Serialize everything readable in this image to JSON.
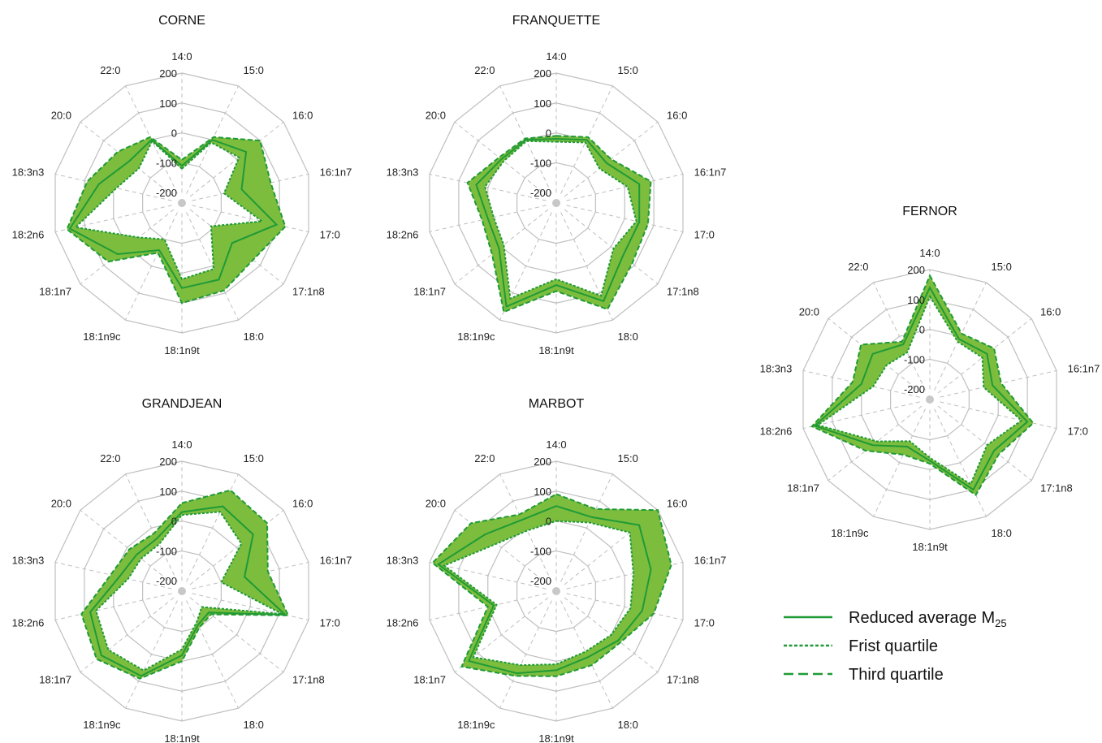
{
  "chart_data": [
    {
      "type": "radar",
      "title": "CORNE",
      "categories": [
        "14:0",
        "15:0",
        "16:0",
        "16:1n7",
        "17:0",
        "17:1n8",
        "18:0",
        "18:1n9t",
        "18:1n9c",
        "18:1n7",
        "18:2n6",
        "18:3n3",
        "20:0",
        "22:0"
      ],
      "rlim": [
        -200,
        200
      ],
      "ticks": [
        200,
        100,
        0,
        -100,
        -200
      ],
      "series": [
        {
          "name": "Reduced average M25",
          "values": [
            -110,
            0,
            40,
            -30,
            90,
            -20,
            50,
            50,
            -60,
            40,
            150,
            50,
            -10,
            0
          ]
        },
        {
          "name": "Frist quartile",
          "values": [
            -120,
            -10,
            10,
            -90,
            40,
            -110,
            10,
            20,
            -100,
            -50,
            130,
            -10,
            -50,
            -5
          ]
        },
        {
          "name": "Third quartile",
          "values": [
            -90,
            10,
            100,
            70,
            120,
            70,
            90,
            100,
            -50,
            80,
            160,
            90,
            40,
            10
          ]
        }
      ]
    },
    {
      "type": "radar",
      "title": "FRANQUETTE",
      "categories": [
        "14:0",
        "15:0",
        "16:0",
        "16:1n7",
        "17:0",
        "17:1n8",
        "18:0",
        "18:1n9t",
        "18:1n9c",
        "18:1n7",
        "18:2n6",
        "18:3n3",
        "20:0",
        "22:0"
      ],
      "rlim": [
        -200,
        200
      ],
      "ticks": [
        200,
        100,
        0,
        -100,
        -200
      ],
      "series": [
        {
          "name": "Reduced average M25",
          "values": [
            -20,
            0,
            -20,
            50,
            50,
            50,
            130,
            40,
            150,
            10,
            0,
            40,
            0,
            0
          ]
        },
        {
          "name": "Frist quartile",
          "values": [
            -30,
            -10,
            -50,
            10,
            40,
            10,
            110,
            20,
            120,
            -10,
            -20,
            10,
            -10,
            -5
          ]
        },
        {
          "name": "Third quartile",
          "values": [
            -10,
            10,
            0,
            90,
            80,
            90,
            160,
            60,
            170,
            40,
            20,
            70,
            10,
            5
          ]
        }
      ]
    },
    {
      "type": "radar",
      "title": "FERNOR",
      "categories": [
        "14:0",
        "15:0",
        "16:0",
        "16:1n7",
        "17:0",
        "17:1n8",
        "18:0",
        "18:1n9t",
        "18:1n9c",
        "18:1n7",
        "18:2n6",
        "18:3n3",
        "20:0",
        "22:0"
      ],
      "rlim": [
        -200,
        200
      ],
      "ticks": [
        200,
        100,
        0,
        -100,
        -200
      ],
      "series": [
        {
          "name": "Reduced average M25",
          "values": [
            140,
            -10,
            10,
            -20,
            100,
            40,
            100,
            -30,
            -60,
            10,
            160,
            0,
            10,
            -30
          ]
        },
        {
          "name": "Frist quartile",
          "values": [
            110,
            -20,
            -10,
            -50,
            80,
            10,
            80,
            -40,
            -80,
            -10,
            150,
            -40,
            -50,
            -60
          ]
        },
        {
          "name": "Third quartile",
          "values": [
            180,
            10,
            40,
            10,
            120,
            60,
            120,
            -20,
            -30,
            40,
            170,
            30,
            60,
            -20
          ]
        }
      ]
    },
    {
      "type": "radar",
      "title": "GRANDJEAN",
      "categories": [
        "14:0",
        "15:0",
        "16:0",
        "16:1n7",
        "17:0",
        "17:1n8",
        "18:0",
        "18:1n9t",
        "18:1n9c",
        "18:1n7",
        "18:2n6",
        "18:3n3",
        "20:0",
        "22:0"
      ],
      "rlim": [
        -200,
        200
      ],
      "ticks": [
        200,
        100,
        0,
        -100,
        -200
      ],
      "series": [
        {
          "name": "Reduced average M25",
          "values": [
            30,
            80,
            70,
            -20,
            120,
            -120,
            -110,
            -20,
            80,
            110,
            80,
            -20,
            -40,
            -40
          ]
        },
        {
          "name": "Frist quartile",
          "values": [
            20,
            60,
            20,
            -100,
            110,
            -150,
            -120,
            -40,
            60,
            80,
            60,
            -50,
            -60,
            -60
          ]
        },
        {
          "name": "Third quartile",
          "values": [
            60,
            140,
            130,
            60,
            130,
            -110,
            -100,
            0,
            90,
            130,
            110,
            10,
            -10,
            -20
          ]
        }
      ]
    },
    {
      "type": "radar",
      "title": "MARBOT",
      "categories": [
        "14:0",
        "15:0",
        "16:0",
        "16:1n7",
        "17:0",
        "17:1n8",
        "18:0",
        "18:1n9t",
        "18:1n9c",
        "18:1n7",
        "18:2n6",
        "18:3n3",
        "20:0",
        "22:0"
      ],
      "rlim": [
        -200,
        200
      ],
      "ticks": [
        200,
        100,
        0,
        -100,
        -200
      ],
      "series": [
        {
          "name": "Reduced average M25",
          "values": [
            50,
            40,
            120,
            90,
            60,
            30,
            10,
            30,
            70,
            140,
            -20,
            170,
            70,
            30
          ]
        },
        {
          "name": "Frist quartile",
          "values": [
            0,
            20,
            80,
            30,
            20,
            0,
            -10,
            10,
            40,
            120,
            -30,
            150,
            20,
            -10
          ]
        },
        {
          "name": "Third quartile",
          "values": [
            90,
            70,
            200,
            160,
            100,
            40,
            40,
            50,
            80,
            170,
            0,
            190,
            130,
            50
          ]
        }
      ]
    }
  ],
  "legend": {
    "items": [
      {
        "label": "Reduced average M",
        "sub": "25",
        "style": "solid"
      },
      {
        "label": "Frist quartile",
        "sub": "",
        "style": "dotted"
      },
      {
        "label": "Third quartile",
        "sub": "",
        "style": "dashed"
      }
    ],
    "colors": {
      "line": "#1f9a36",
      "fill": "#7cbd3e",
      "grid": "#bfbfbf",
      "center": "#c8c8c8"
    }
  }
}
